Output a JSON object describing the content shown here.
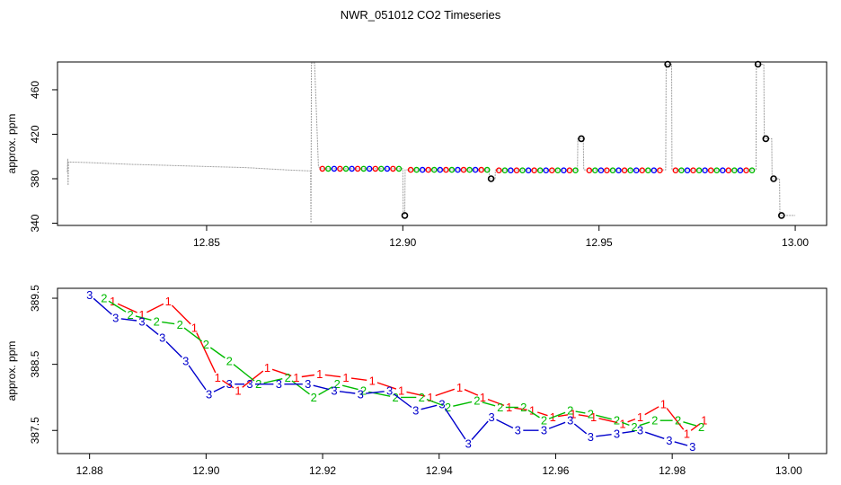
{
  "chart_data": [
    {
      "type": "line",
      "title": "NWR_051012  CO2 Timeseries",
      "xlabel": "",
      "ylabel": "approx. ppm",
      "xlim": [
        12.812,
        13.008
      ],
      "ylim": [
        338,
        485
      ],
      "xticks": [
        "12.85",
        "12.90",
        "12.95",
        "13.00"
      ],
      "yticks": [
        "340",
        "380",
        "420",
        "460"
      ],
      "grid": false,
      "raw_trace": {
        "color": "#a0a0a0",
        "x": [
          12.8145,
          12.8146,
          12.8147,
          12.8148,
          12.82,
          12.83,
          12.84,
          12.85,
          12.86,
          12.87,
          12.8765,
          12.8766,
          12.8767,
          12.8775,
          12.8785,
          12.879,
          12.9,
          12.9001,
          12.9005,
          12.9006,
          12.9015,
          12.922,
          12.9221,
          12.9235,
          12.9236,
          12.9445,
          12.9446,
          12.946,
          12.9461,
          12.967,
          12.9671,
          12.9685,
          12.9686,
          12.99,
          12.9901,
          12.992,
          12.9921,
          12.994,
          12.9941,
          12.996,
          12.9961,
          12.998,
          13.0
        ],
        "y": [
          386,
          398,
          374,
          395,
          394.5,
          393,
          392,
          391,
          390,
          388,
          387,
          340,
          484,
          484,
          391,
          389,
          389,
          348,
          348,
          388,
          388,
          388,
          380,
          380,
          388,
          388,
          416,
          416,
          388,
          388,
          483,
          483,
          388,
          388,
          483,
          483,
          416,
          416,
          380,
          380,
          347,
          347,
          347
        ]
      },
      "markers": {
        "interval": 0.0015,
        "colors": [
          "#ff0000",
          "#00bb00",
          "#0000ff"
        ],
        "segments": [
          {
            "x_start": 12.8795,
            "x_end": 12.8995,
            "y": 389
          },
          {
            "x_start": 12.902,
            "x_end": 12.9215,
            "y": 388
          },
          {
            "x_start": 12.9245,
            "x_end": 12.944,
            "y": 387.5
          },
          {
            "x_start": 12.9475,
            "x_end": 12.9665,
            "y": 387.5
          },
          {
            "x_start": 12.9695,
            "x_end": 12.989,
            "y": 387.5
          }
        ]
      },
      "spike_markers": {
        "color": "#000000",
        "x": [
          12.9005,
          12.9225,
          12.9455,
          12.9675,
          12.9905,
          12.9925,
          12.9945,
          12.9965
        ],
        "y": [
          347,
          380,
          416,
          483,
          483,
          416,
          380,
          347
        ]
      }
    },
    {
      "type": "line",
      "title": "",
      "xlabel": "",
      "ylabel": "approx. ppm",
      "xlim": [
        12.8745,
        13.0065
      ],
      "ylim": [
        387.15,
        389.65
      ],
      "xticks": [
        "12.88",
        "12.90",
        "12.92",
        "12.94",
        "12.96",
        "12.98",
        "13.00"
      ],
      "yticks": [
        "387.5",
        "388.5",
        "389.5"
      ],
      "grid": false,
      "series": [
        {
          "name": "1",
          "color": "#ff0000",
          "x": [
            12.884,
            12.889,
            12.8935,
            12.898,
            12.902,
            12.9055,
            12.9105,
            12.9155,
            12.9195,
            12.924,
            12.9285,
            12.9335,
            12.9385,
            12.9435,
            12.9475,
            12.952,
            12.956,
            12.9595,
            12.963,
            12.9665,
            12.9715,
            12.9745,
            12.9785,
            12.9825,
            12.9855
          ],
          "y": [
            389.45,
            389.25,
            389.45,
            389.05,
            388.3,
            388.1,
            388.45,
            388.3,
            388.35,
            388.3,
            388.25,
            388.1,
            388.0,
            388.15,
            388.0,
            387.85,
            387.8,
            387.7,
            387.75,
            387.7,
            387.6,
            387.7,
            387.9,
            387.45,
            387.65
          ]
        },
        {
          "name": "2",
          "color": "#00bb00",
          "x": [
            12.8825,
            12.887,
            12.8915,
            12.8955,
            12.9,
            12.904,
            12.909,
            12.914,
            12.9185,
            12.9225,
            12.927,
            12.9325,
            12.937,
            12.9415,
            12.9465,
            12.9505,
            12.9545,
            12.958,
            12.9625,
            12.966,
            12.9705,
            12.9735,
            12.977,
            12.981,
            12.985
          ],
          "y": [
            389.5,
            389.25,
            389.15,
            389.1,
            388.8,
            388.55,
            388.2,
            388.3,
            388.0,
            388.2,
            388.1,
            388.0,
            388.0,
            387.85,
            387.95,
            387.85,
            387.85,
            387.65,
            387.8,
            387.75,
            387.65,
            387.55,
            387.65,
            387.65,
            387.55
          ]
        },
        {
          "name": "3",
          "color": "#0000cc",
          "x": [
            12.88,
            12.8845,
            12.889,
            12.8925,
            12.8965,
            12.9005,
            12.904,
            12.9075,
            12.9125,
            12.9175,
            12.922,
            12.9265,
            12.9315,
            12.936,
            12.9405,
            12.945,
            12.949,
            12.9535,
            12.958,
            12.9625,
            12.966,
            12.9705,
            12.9745,
            12.9795,
            12.9835
          ],
          "y": [
            389.55,
            389.2,
            389.15,
            388.9,
            388.55,
            388.05,
            388.2,
            388.2,
            388.2,
            388.2,
            388.1,
            388.05,
            388.1,
            387.8,
            387.9,
            387.3,
            387.7,
            387.5,
            387.5,
            387.65,
            387.4,
            387.45,
            387.5,
            387.35,
            387.25
          ]
        }
      ]
    }
  ]
}
